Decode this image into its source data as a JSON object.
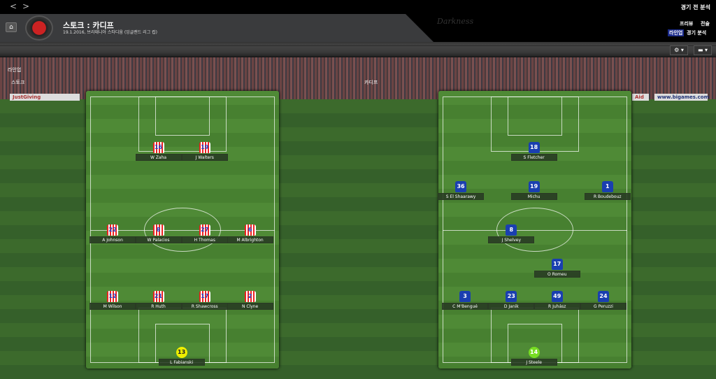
{
  "nav": {
    "back": "<",
    "forward": ">"
  },
  "header": {
    "title": "스토크 : 카디프",
    "subtitle": "19.1.2016, 브리태니아 스타디움 (잉글랜드 리그 컵)",
    "watermark": "Darkness",
    "section": "경기 전 분석",
    "tabs_row1": [
      "프리뷰",
      "전술"
    ],
    "tabs_row2": [
      "라인업",
      "경기 분석"
    ],
    "active_tab": "라인업"
  },
  "toolbar": {
    "settings_icon": "gear-icon",
    "chat_icon": "speech-bubble-icon"
  },
  "view_label": "라인업",
  "home_team": "스토크",
  "away_team": "카디프",
  "boards": [
    "JustGiving",
    "Aid",
    "www.bigames.com"
  ],
  "home_players": [
    {
      "num": "16",
      "name": "W Zaha"
    },
    {
      "num": "19",
      "name": "J Walters"
    },
    {
      "num": "22",
      "name": "A Johnson"
    },
    {
      "num": "8",
      "name": "W Palacios"
    },
    {
      "num": "27",
      "name": "H Thomas"
    },
    {
      "num": "6",
      "name": "M Albrighton"
    },
    {
      "num": "12",
      "name": "M Wilson"
    },
    {
      "num": "21",
      "name": "R Huth"
    },
    {
      "num": "17",
      "name": "R Shawcross"
    },
    {
      "num": "2",
      "name": "N Clyne"
    },
    {
      "num": "13",
      "name": "L Fabianski"
    }
  ],
  "away_players": [
    {
      "num": "18",
      "name": "S Fletcher"
    },
    {
      "num": "36",
      "name": "S El Shaarawy"
    },
    {
      "num": "19",
      "name": "Michu"
    },
    {
      "num": "1",
      "name": "R Boudebouz"
    },
    {
      "num": "8",
      "name": "J Shelvey"
    },
    {
      "num": "17",
      "name": "O Romeu"
    },
    {
      "num": "3",
      "name": "C M'Bengué"
    },
    {
      "num": "23",
      "name": "D Janik"
    },
    {
      "num": "49",
      "name": "R Juhász"
    },
    {
      "num": "24",
      "name": "G Peruzzi"
    },
    {
      "num": "14",
      "name": "J Steele"
    }
  ],
  "colors": {
    "home_shirt": "#e22222",
    "away_shirt": "#1a3fb0",
    "home_gk": "#eeee00",
    "away_gk": "#77dd22"
  }
}
